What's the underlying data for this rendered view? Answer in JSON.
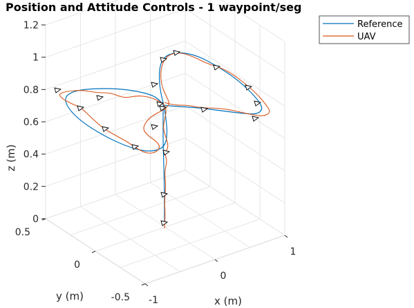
{
  "chart_data": {
    "type": "line3d",
    "title": "Position and Attitude Controls - 1 waypoint/seg",
    "xlabel": "x (m)",
    "ylabel": "y (m)",
    "zlabel": "z (m)",
    "xlim": [
      -1,
      1
    ],
    "ylim": [
      -0.5,
      0.5
    ],
    "zlim": [
      0,
      1.2
    ],
    "xticks": [
      "-1",
      "0",
      "1"
    ],
    "yticks": [
      "0.5",
      "0",
      "-0.5"
    ],
    "zticks": [
      "0",
      "0.2",
      "0.4",
      "0.6",
      "0.8",
      "1",
      "1.2"
    ],
    "grid": true,
    "legend_position": "top-right",
    "series": [
      {
        "name": "Reference",
        "color": "#0072BD",
        "style": "figure-eight trajectory, z from 0 to ~1.2 m"
      },
      {
        "name": "UAV",
        "color": "#D95319",
        "style": "measured flight path with waypoint attitude markers"
      }
    ]
  }
}
